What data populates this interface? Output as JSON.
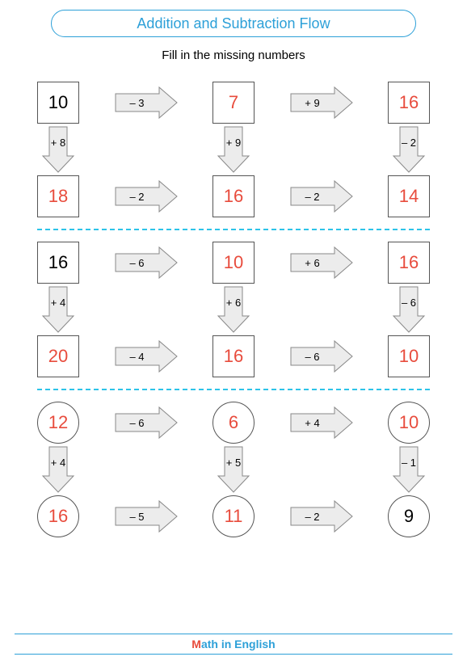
{
  "title": "Addition and Subtraction Flow",
  "instruction": "Fill in the missing numbers",
  "footer": {
    "m": "M",
    "rest": "ath in English"
  },
  "colors": {
    "accent": "#2da0d8",
    "answer": "#e84c3d",
    "divider": "#2dc3e8",
    "arrow_fill": "#ececec",
    "arrow_stroke": "#888"
  },
  "sections": [
    {
      "shape": "box",
      "row1": {
        "c0": {
          "v": "10",
          "cls": "black"
        },
        "a0": "– 3",
        "c1": {
          "v": "7",
          "cls": "red"
        },
        "a1": "+ 9",
        "c2": {
          "v": "16",
          "cls": "red"
        }
      },
      "vert": {
        "a0": "+ 8",
        "a1": "+ 9",
        "a2": "– 2"
      },
      "row2": {
        "c0": {
          "v": "18",
          "cls": "red"
        },
        "a0": "– 2",
        "c1": {
          "v": "16",
          "cls": "red"
        },
        "a1": "– 2",
        "c2": {
          "v": "14",
          "cls": "red"
        }
      }
    },
    {
      "shape": "box",
      "row1": {
        "c0": {
          "v": "16",
          "cls": "black"
        },
        "a0": "– 6",
        "c1": {
          "v": "10",
          "cls": "red"
        },
        "a1": "+ 6",
        "c2": {
          "v": "16",
          "cls": "red"
        }
      },
      "vert": {
        "a0": "+ 4",
        "a1": "+ 6",
        "a2": "– 6"
      },
      "row2": {
        "c0": {
          "v": "20",
          "cls": "red"
        },
        "a0": "– 4",
        "c1": {
          "v": "16",
          "cls": "red"
        },
        "a1": "– 6",
        "c2": {
          "v": "10",
          "cls": "red"
        }
      }
    },
    {
      "shape": "circle",
      "row1": {
        "c0": {
          "v": "12",
          "cls": "red"
        },
        "a0": "– 6",
        "c1": {
          "v": "6",
          "cls": "red"
        },
        "a1": "+ 4",
        "c2": {
          "v": "10",
          "cls": "red"
        }
      },
      "vert": {
        "a0": "+ 4",
        "a1": "+ 5",
        "a2": "– 1"
      },
      "row2": {
        "c0": {
          "v": "16",
          "cls": "red"
        },
        "a0": "– 5",
        "c1": {
          "v": "11",
          "cls": "red"
        },
        "a1": "– 2",
        "c2": {
          "v": "9",
          "cls": "black"
        }
      }
    }
  ]
}
